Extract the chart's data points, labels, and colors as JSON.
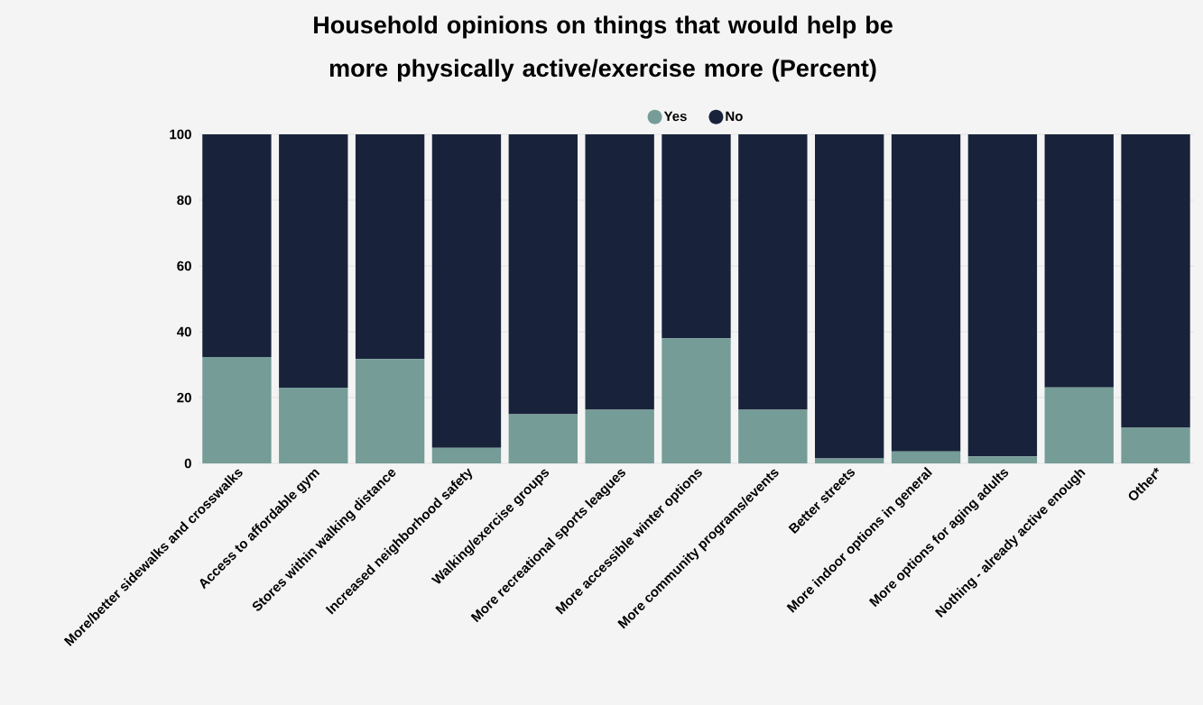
{
  "chart_data": {
    "type": "bar",
    "title": "Household opinions on things that would help be more physically active/exercise more (Percent)",
    "categories": [
      "More/better sidewalks and crosswalks",
      "Access to affordable gym",
      "Stores within walking distance",
      "Increased neighborhood safety",
      "Walking/exercise groups",
      "More recreational sports leagues",
      "More accessible winter options",
      "More community programs/events",
      "Better streets",
      "More indoor options in general",
      "More options for aging adults",
      "Nothing - already active enough",
      "Other*"
    ],
    "series": [
      {
        "name": "Yes",
        "color": "#759c97",
        "values": [
          32.3,
          23.0,
          31.7,
          4.7,
          14.9,
          16.3,
          38.0,
          16.3,
          1.5,
          3.6,
          2.1,
          23.1,
          10.8
        ]
      },
      {
        "name": "No",
        "color": "#18233b",
        "values": [
          67.7,
          77.0,
          68.3,
          95.3,
          85.1,
          83.7,
          62.0,
          83.7,
          98.5,
          96.4,
          97.9,
          76.9,
          89.2
        ]
      }
    ],
    "stacked": true,
    "ylim": [
      0,
      100
    ],
    "yticks": [
      0,
      20,
      40,
      60,
      80,
      100
    ],
    "grid": "y",
    "legend": "top"
  }
}
